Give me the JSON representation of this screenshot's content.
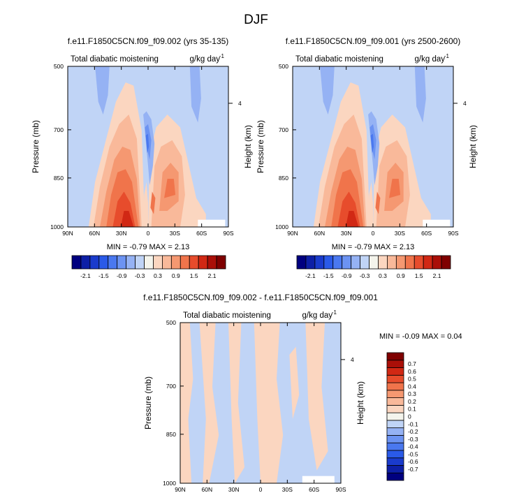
{
  "page_title": "DJF",
  "chart_data": [
    {
      "type": "heatmap",
      "title": "f.e11.F1850C5CN.f09_f09.002 (yrs 35-135)",
      "left_label": "Total diabatic moistening",
      "right_label": "g/kg day",
      "right_label_sup": "-1",
      "ylabel": "Pressure (mb)",
      "ylabel_right": "Height (km)",
      "x_ticks": [
        "90N",
        "60N",
        "30N",
        "0",
        "30S",
        "60S",
        "90S"
      ],
      "y_ticks": [
        "500",
        "700",
        "850",
        "1000"
      ],
      "y_ticks_right": [
        "4"
      ],
      "stats": {
        "min": "-0.79",
        "max": "2.13"
      },
      "stats_text": "MIN =  -0.79  MAX =  2.13"
    },
    {
      "type": "heatmap",
      "title": "f.e11.F1850C5CN.f09_f09.001 (yrs 2500-2600)",
      "left_label": "Total diabatic moistening",
      "right_label": "g/kg day",
      "right_label_sup": "-1",
      "ylabel": "Pressure (mb)",
      "ylabel_right": "Height (km)",
      "x_ticks": [
        "90N",
        "60N",
        "30N",
        "0",
        "30S",
        "60S",
        "90S"
      ],
      "y_ticks": [
        "500",
        "700",
        "850",
        "1000"
      ],
      "y_ticks_right": [
        "4"
      ],
      "stats": {
        "min": "-0.79",
        "max": "2.13"
      },
      "stats_text": "MIN =  -0.79  MAX =  2.13"
    },
    {
      "type": "heatmap",
      "title": "f.e11.F1850C5CN.f09_f09.002 - f.e11.F1850C5CN.f09_f09.001",
      "left_label": "Total diabatic moistening",
      "right_label": "g/kg day",
      "right_label_sup": "-1",
      "ylabel": "Pressure (mb)",
      "ylabel_right": "Height (km)",
      "x_ticks": [
        "90N",
        "60N",
        "30N",
        "0",
        "30S",
        "60S",
        "90S"
      ],
      "y_ticks": [
        "500",
        "700",
        "850",
        "1000"
      ],
      "y_ticks_right": [
        "4"
      ],
      "stats": {
        "min": "-0.09",
        "max": "0.04"
      },
      "stats_text": "MIN =  -0.09  MAX =  0.04"
    }
  ],
  "colorbar_top": {
    "colors": [
      "#00007f",
      "#0d1fa6",
      "#1a3bcc",
      "#2a5ae8",
      "#4a78ef",
      "#6c93f2",
      "#95b2f4",
      "#c0d4f6",
      "#f4f4ec",
      "#fbd6c0",
      "#f9b99a",
      "#f59871",
      "#f0744b",
      "#e74c2c",
      "#d12814",
      "#aa0f08",
      "#7f0000"
    ],
    "labels": [
      "-2.1",
      "-1.5",
      "-0.9",
      "-0.3",
      "0.3",
      "0.9",
      "1.5",
      "2.1"
    ]
  },
  "colorbar_diff": {
    "colors": [
      "#00007f",
      "#0d1fa6",
      "#1a3bcc",
      "#2a5ae8",
      "#4a78ef",
      "#6c93f2",
      "#95b2f4",
      "#c0d4f6",
      "#f4f4ec",
      "#fbd6c0",
      "#f9b99a",
      "#f59871",
      "#f0744b",
      "#e74c2c",
      "#d12814",
      "#aa0f08",
      "#7f0000"
    ],
    "labels": [
      "-0.7",
      "-0.6",
      "-0.5",
      "-0.4",
      "-0.3",
      "-0.2",
      "-0.1",
      "0",
      "0.1",
      "0.2",
      "0.3",
      "0.4",
      "0.5",
      "0.6",
      "0.7"
    ]
  }
}
